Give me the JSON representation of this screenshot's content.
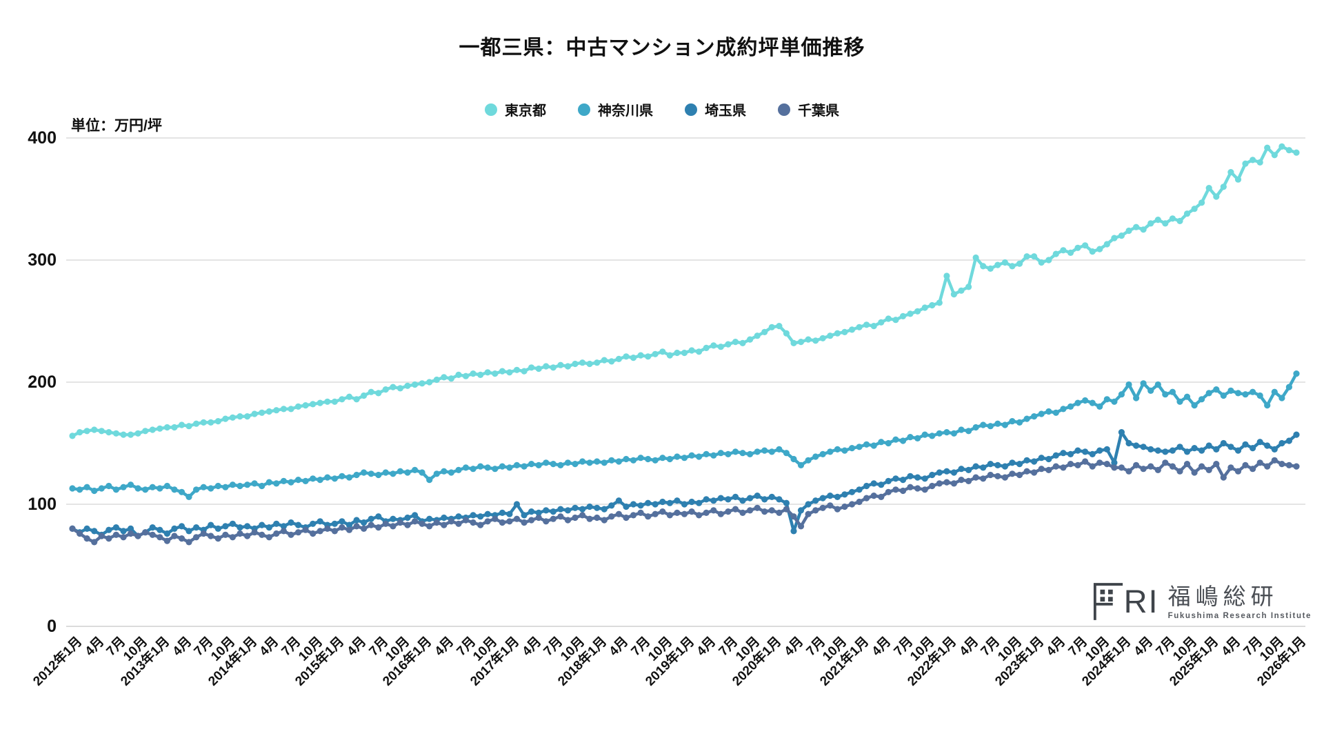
{
  "colors": {
    "tokyo": "#6FD9DC",
    "kanagawa": "#3EA8C8",
    "saitama": "#2E80B0",
    "chiba": "#55709D",
    "gridline": "#DBDBDB",
    "text": "#111111"
  },
  "logo": {
    "letters": "RI",
    "kanji": "福嶋総研",
    "english": "Fukushima Research Institute"
  },
  "chart_data": {
    "type": "line",
    "title": "一都三県：中古マンション成約坪単価推移",
    "ylabel": "単位：万円/坪",
    "xlabel": "",
    "ylim": [
      0,
      400
    ],
    "y_ticks": [
      0,
      100,
      200,
      300,
      400
    ],
    "grid": "horizontal",
    "legend_position": "top",
    "frequency": "monthly",
    "x_start": "2012年1月",
    "x_end": "2026年1月",
    "x_tick_labels": [
      "2012年1月",
      "4月",
      "7月",
      "10月",
      "2013年1月",
      "4月",
      "7月",
      "10月",
      "2014年1月",
      "4月",
      "7月",
      "10月",
      "2015年1月",
      "4月",
      "7月",
      "10月",
      "2016年1月",
      "4月",
      "7月",
      "10月",
      "2017年1月",
      "4月",
      "7月",
      "10月",
      "2018年1月",
      "4月",
      "7月",
      "10月",
      "2019年1月",
      "4月",
      "7月",
      "10月",
      "2020年1月",
      "4月",
      "7月",
      "10月",
      "2021年1月",
      "4月",
      "7月",
      "10月",
      "2022年1月",
      "4月",
      "7月",
      "10月",
      "2023年1月",
      "4月",
      "7月",
      "10月",
      "2024年1月",
      "4月",
      "7月",
      "10月",
      "2025年1月",
      "4月",
      "7月",
      "10月",
      "2026年1月"
    ],
    "x_tick_every_n_months": 3,
    "series": [
      {
        "name": "東京都",
        "color": "#6FD9DC",
        "values": [
          156,
          159,
          160,
          161,
          160,
          159,
          158,
          157,
          157,
          158,
          160,
          161,
          162,
          163,
          163,
          165,
          164,
          166,
          167,
          167,
          168,
          170,
          171,
          172,
          172,
          174,
          175,
          176,
          177,
          178,
          178,
          180,
          181,
          182,
          183,
          184,
          184,
          186,
          188,
          186,
          189,
          192,
          191,
          194,
          196,
          195,
          197,
          198,
          199,
          200,
          202,
          204,
          203,
          206,
          205,
          207,
          206,
          208,
          207,
          209,
          208,
          210,
          209,
          212,
          211,
          213,
          212,
          214,
          213,
          215,
          216,
          215,
          216,
          218,
          217,
          219,
          221,
          220,
          222,
          221,
          223,
          225,
          222,
          224,
          224,
          226,
          225,
          228,
          230,
          229,
          231,
          233,
          232,
          235,
          238,
          241,
          245,
          246,
          240,
          232,
          233,
          235,
          234,
          236,
          238,
          240,
          241,
          243,
          245,
          247,
          246,
          249,
          252,
          251,
          254,
          256,
          258,
          261,
          263,
          265,
          287,
          272,
          275,
          278,
          302,
          295,
          293,
          296,
          298,
          295,
          297,
          303,
          303,
          298,
          300,
          305,
          308,
          306,
          310,
          312,
          307,
          309,
          313,
          318,
          320,
          324,
          327,
          325,
          330,
          333,
          330,
          334,
          332,
          338,
          342,
          347,
          359,
          352,
          360,
          372,
          366,
          379,
          382,
          380,
          392,
          386,
          393,
          390,
          388
        ]
      },
      {
        "name": "神奈川県",
        "color": "#3EA8C8",
        "values": [
          113,
          112,
          114,
          111,
          113,
          115,
          112,
          114,
          116,
          113,
          112,
          114,
          113,
          115,
          112,
          110,
          106,
          112,
          114,
          113,
          115,
          114,
          116,
          115,
          116,
          117,
          115,
          118,
          117,
          119,
          118,
          120,
          119,
          121,
          120,
          122,
          121,
          123,
          122,
          124,
          126,
          125,
          124,
          126,
          125,
          127,
          126,
          128,
          126,
          120,
          125,
          127,
          126,
          128,
          130,
          129,
          131,
          130,
          129,
          131,
          130,
          132,
          131,
          133,
          132,
          134,
          133,
          132,
          134,
          133,
          135,
          134,
          135,
          134,
          136,
          135,
          137,
          136,
          138,
          137,
          136,
          138,
          137,
          139,
          138,
          140,
          139,
          141,
          140,
          142,
          141,
          143,
          142,
          141,
          143,
          144,
          143,
          145,
          142,
          137,
          132,
          136,
          139,
          141,
          143,
          145,
          144,
          146,
          147,
          149,
          148,
          151,
          150,
          153,
          152,
          155,
          154,
          157,
          156,
          158,
          159,
          158,
          161,
          160,
          163,
          165,
          164,
          166,
          165,
          168,
          167,
          170,
          172,
          174,
          176,
          175,
          178,
          180,
          183,
          185,
          183,
          180,
          186,
          184,
          190,
          198,
          187,
          199,
          193,
          198,
          190,
          192,
          184,
          188,
          181,
          186,
          191,
          194,
          189,
          193,
          191,
          190,
          192,
          189,
          181,
          192,
          187,
          196,
          207
        ]
      },
      {
        "name": "埼玉県",
        "color": "#2E80B0",
        "values": [
          80,
          77,
          80,
          78,
          75,
          79,
          81,
          78,
          80,
          74,
          77,
          81,
          79,
          76,
          80,
          82,
          78,
          81,
          79,
          83,
          80,
          82,
          84,
          81,
          82,
          80,
          83,
          81,
          84,
          82,
          85,
          83,
          81,
          84,
          86,
          83,
          84,
          86,
          83,
          87,
          85,
          88,
          90,
          86,
          88,
          87,
          89,
          91,
          86,
          88,
          87,
          89,
          88,
          90,
          89,
          91,
          90,
          92,
          91,
          93,
          92,
          100,
          91,
          94,
          93,
          95,
          94,
          96,
          95,
          97,
          96,
          98,
          97,
          96,
          99,
          103,
          98,
          100,
          99,
          101,
          100,
          102,
          101,
          103,
          100,
          102,
          101,
          104,
          103,
          105,
          104,
          106,
          103,
          105,
          107,
          104,
          106,
          104,
          101,
          78,
          95,
          100,
          103,
          105,
          107,
          106,
          108,
          110,
          112,
          115,
          117,
          116,
          119,
          121,
          120,
          123,
          122,
          121,
          124,
          126,
          127,
          126,
          129,
          128,
          131,
          130,
          133,
          132,
          131,
          134,
          133,
          136,
          135,
          138,
          137,
          140,
          142,
          141,
          144,
          143,
          141,
          144,
          145,
          134,
          159,
          150,
          148,
          147,
          145,
          144,
          143,
          144,
          147,
          143,
          146,
          144,
          148,
          145,
          150,
          147,
          144,
          149,
          146,
          151,
          148,
          145,
          150,
          152,
          157
        ]
      },
      {
        "name": "千葉県",
        "color": "#55709D",
        "values": [
          80,
          76,
          72,
          69,
          74,
          72,
          75,
          73,
          76,
          74,
          77,
          75,
          73,
          70,
          74,
          72,
          69,
          73,
          76,
          74,
          72,
          75,
          73,
          76,
          74,
          77,
          75,
          73,
          76,
          78,
          75,
          77,
          79,
          76,
          78,
          80,
          78,
          81,
          79,
          82,
          80,
          83,
          81,
          84,
          82,
          85,
          83,
          86,
          84,
          82,
          85,
          83,
          86,
          84,
          87,
          85,
          83,
          86,
          88,
          85,
          86,
          88,
          85,
          87,
          89,
          86,
          88,
          90,
          87,
          89,
          91,
          88,
          89,
          87,
          90,
          92,
          89,
          91,
          93,
          90,
          92,
          94,
          91,
          93,
          92,
          94,
          91,
          93,
          95,
          92,
          94,
          96,
          93,
          95,
          97,
          94,
          95,
          93,
          96,
          90,
          82,
          92,
          95,
          97,
          99,
          96,
          98,
          100,
          102,
          105,
          107,
          106,
          110,
          112,
          111,
          114,
          113,
          112,
          115,
          117,
          118,
          117,
          120,
          119,
          122,
          121,
          124,
          123,
          122,
          125,
          124,
          127,
          126,
          129,
          128,
          131,
          130,
          133,
          132,
          135,
          131,
          134,
          133,
          130,
          130,
          127,
          132,
          129,
          131,
          128,
          134,
          131,
          127,
          133,
          126,
          131,
          128,
          133,
          122,
          130,
          127,
          132,
          129,
          134,
          131,
          136,
          133,
          132,
          131
        ]
      }
    ]
  }
}
